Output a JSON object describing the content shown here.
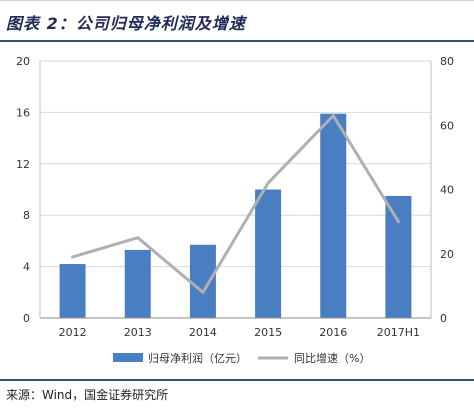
{
  "header": {
    "title": "图表 2：公司归母净利润及增速"
  },
  "footer": {
    "source": "来源：Wind，国金证券研究所"
  },
  "chart_data": {
    "type": "bar",
    "categories": [
      "2012",
      "2013",
      "2014",
      "2015",
      "2016",
      "2017H1"
    ],
    "series": [
      {
        "name": "归母净利润（亿元）",
        "type": "bar",
        "axis": "left",
        "values": [
          4.2,
          5.3,
          5.7,
          10.0,
          15.9,
          9.5
        ]
      },
      {
        "name": "同比增速（%）",
        "type": "line",
        "axis": "right",
        "values": [
          19,
          25,
          8,
          42,
          63,
          30
        ]
      }
    ],
    "y_left": {
      "ylim": [
        0,
        20
      ],
      "ticks": [
        0,
        4,
        8,
        12,
        16,
        20
      ]
    },
    "y_right": {
      "ylim": [
        0,
        80
      ],
      "ticks": [
        0,
        20,
        40,
        60,
        80
      ]
    },
    "colors": {
      "bar": "#4a7ec2",
      "line": "#b0b0b0",
      "grid": "#d9d9d9"
    },
    "legend": "bottom",
    "grid": true
  }
}
